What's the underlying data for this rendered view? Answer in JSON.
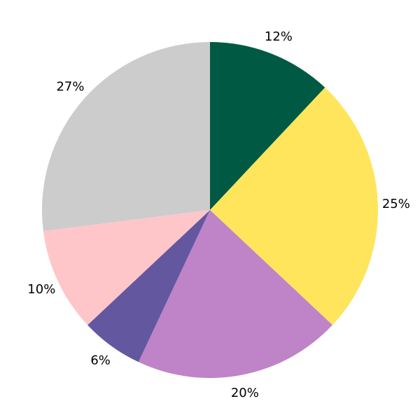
{
  "chart_data": {
    "type": "pie",
    "start": "top",
    "direction": "clockwise",
    "slices": [
      {
        "label": "12%",
        "value": 12,
        "color": "#005a43"
      },
      {
        "label": "25%",
        "value": 25,
        "color": "#ffe55c"
      },
      {
        "label": "20%",
        "value": 20,
        "color": "#bf83c8"
      },
      {
        "label": "6%",
        "value": 6,
        "color": "#6358a0"
      },
      {
        "label": "10%",
        "value": 10,
        "color": "#fec6c8"
      },
      {
        "label": "27%",
        "value": 27,
        "color": "#cccccc"
      }
    ]
  }
}
